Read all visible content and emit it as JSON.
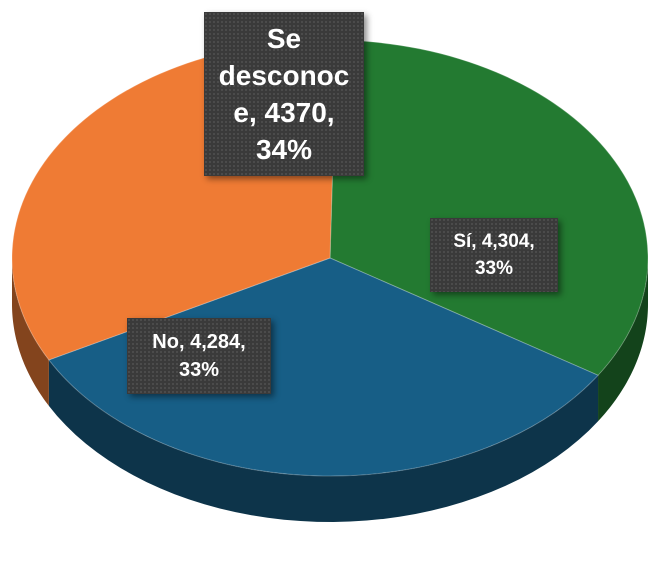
{
  "chart_data": {
    "type": "pie",
    "title": "",
    "style": "3d",
    "slices": [
      {
        "name": "Se desconoce",
        "value": 4370,
        "percent": 34,
        "color": "#237a31",
        "label": "Se\ndesconoc\ne, 4370,\n34%"
      },
      {
        "name": "Sí",
        "value": 4304,
        "percent": 33,
        "color": "#175e86",
        "label": "Sí, 4,304,\n33%"
      },
      {
        "name": "No",
        "value": 4284,
        "percent": 33,
        "color": "#ef7b34",
        "label": "No, 4,284,\n33%"
      }
    ],
    "legend": "none"
  }
}
